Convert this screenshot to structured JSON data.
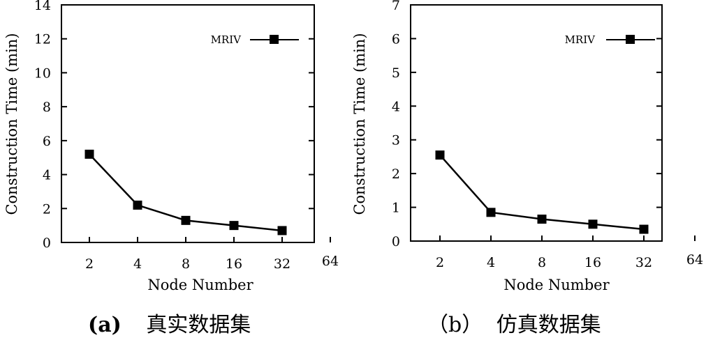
{
  "chart_data": [
    {
      "type": "line",
      "caption_prefix": "(a)",
      "caption_text": "真实数据集",
      "xlabel": "Node Number",
      "ylabel": "Construction Time (min)",
      "x_ticks": [
        "2",
        "4",
        "8",
        "16",
        "32",
        "64"
      ],
      "y_ticks": [
        "0",
        "2",
        "4",
        "6",
        "8",
        "10",
        "12",
        "14"
      ],
      "ylim": [
        0,
        14
      ],
      "legend_position": "top-right",
      "series": [
        {
          "name": "MRIV",
          "marker": "square",
          "x": [
            "2",
            "4",
            "8",
            "16",
            "32"
          ],
          "values": [
            5.2,
            2.2,
            1.3,
            1.0,
            0.7
          ]
        }
      ]
    },
    {
      "type": "line",
      "caption_prefix": "（b）",
      "caption_text": "仿真数据集",
      "xlabel": "Node Number",
      "ylabel": "Construction Time (min)",
      "x_ticks": [
        "2",
        "4",
        "8",
        "16",
        "32",
        "64"
      ],
      "y_ticks": [
        "0",
        "1",
        "2",
        "3",
        "4",
        "5",
        "6",
        "7"
      ],
      "ylim": [
        0,
        7
      ],
      "legend_position": "top-right",
      "series": [
        {
          "name": "MRIV",
          "marker": "square",
          "x": [
            "2",
            "4",
            "8",
            "16",
            "32"
          ],
          "values": [
            2.55,
            0.85,
            0.65,
            0.5,
            0.35
          ]
        }
      ]
    }
  ]
}
